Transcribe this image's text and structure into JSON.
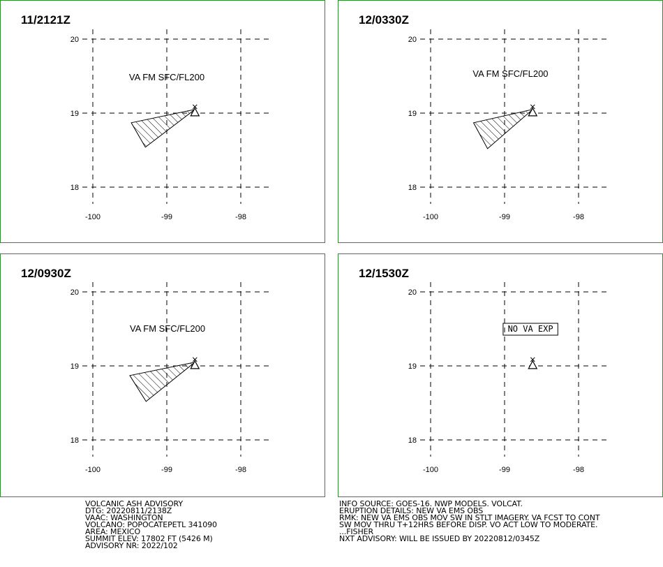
{
  "lon_ticks": [
    "-100",
    "-99",
    "-98"
  ],
  "lat_ticks": [
    "20",
    "19",
    "18"
  ],
  "volcano": {
    "name": "POPOCATEPETL",
    "lon": -98.62,
    "lat": 19.02
  },
  "panels": [
    {
      "title": "11/2121Z",
      "label": "VA FM SFC/FL200",
      "label_boxed": false,
      "label_pos": {
        "lon": -99.0,
        "lat": 19.48
      },
      "ash_polygon": [
        [
          -98.62,
          19.05
        ],
        [
          -99.48,
          18.87
        ],
        [
          -99.29,
          18.54
        ]
      ]
    },
    {
      "title": "12/0330Z",
      "label": "VA FM SFC/FL200",
      "label_boxed": false,
      "label_pos": {
        "lon": -98.92,
        "lat": 19.53
      },
      "ash_polygon": [
        [
          -98.62,
          19.05
        ],
        [
          -99.42,
          18.87
        ],
        [
          -99.23,
          18.52
        ]
      ]
    },
    {
      "title": "12/0930Z",
      "label": "VA FM SFC/FL200",
      "label_boxed": false,
      "label_pos": {
        "lon": -98.99,
        "lat": 19.5
      },
      "ash_polygon": [
        [
          -98.62,
          19.05
        ],
        [
          -99.5,
          18.87
        ],
        [
          -99.28,
          18.52
        ]
      ]
    },
    {
      "title": "12/1530Z",
      "label": "NO VA EXP",
      "label_boxed": true,
      "label_pos": {
        "lon": -98.65,
        "lat": 19.5
      },
      "ash_polygon": []
    }
  ],
  "advisory": {
    "left_lines": [
      "VOLCANIC ASH ADVISORY",
      "DTG: 20220811/2138Z",
      "VAAC: WASHINGTON",
      "VOLCANO: POPOCATEPETL 341090",
      "AREA: MEXICO",
      "SUMMIT ELEV: 17802 FT (5426 M)",
      "ADVISORY NR: 2022/102"
    ],
    "right_lines": [
      "INFO SOURCE: GOES-16. NWP MODELS. VOLCAT.",
      "ERUPTION DETAILS: NEW VA EMS OBS",
      "RMK: NEW VA EMS OBS MOV SW IN STLT IMAGERY. VA FCST TO CONT",
      "SW MOV THRU T+12HRS BEFORE DISP. VO ACT LOW TO MODERATE.",
      "...FISHER",
      "NXT ADVISORY: WILL BE ISSUED BY 20220812/0345Z"
    ]
  }
}
